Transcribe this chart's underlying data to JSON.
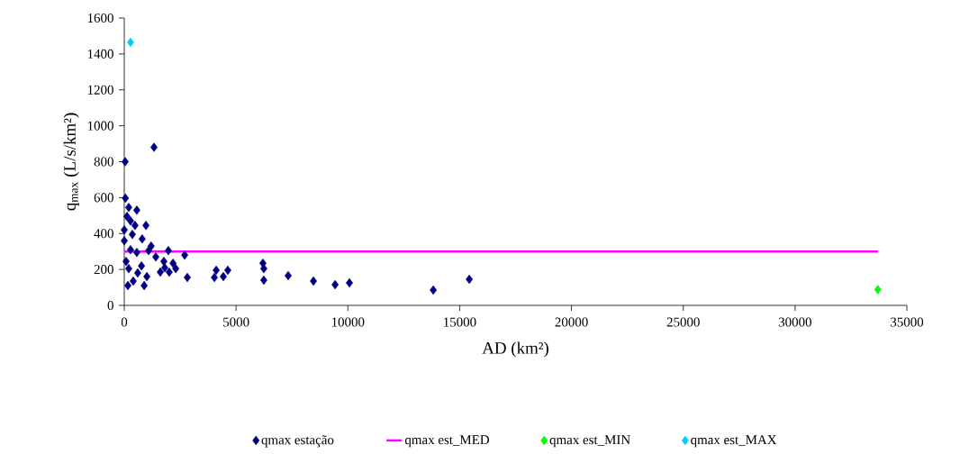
{
  "chart_data": {
    "type": "scatter",
    "xlabel": "AD (km²)",
    "ylabel": "q$_{max}$ (L/s/km²)",
    "xlim": [
      0,
      35000
    ],
    "ylim": [
      0,
      1600
    ],
    "xticks": [
      0,
      5000,
      10000,
      15000,
      20000,
      25000,
      30000,
      35000
    ],
    "yticks": [
      0,
      200,
      400,
      600,
      800,
      1000,
      1200,
      1400,
      1600
    ],
    "grid": false,
    "legend": "bottom",
    "marker": "diamond",
    "series": [
      {
        "name": "qmax estação",
        "color": "#000080",
        "x": [
          40,
          1330,
          50,
          200,
          560,
          970,
          0,
          280,
          480,
          0,
          800,
          1200,
          1090,
          280,
          1970,
          2700,
          1410,
          80,
          1770,
          2180,
          770,
          200,
          1810,
          2300,
          1610,
          2010,
          600,
          4110,
          4630,
          2820,
          4030,
          4430,
          6200,
          6240,
          6240,
          7330,
          160,
          890,
          400,
          1010,
          360,
          120,
          560,
          8460,
          9430,
          10070,
          13820,
          15430
        ],
        "values": [
          800,
          880,
          597,
          545,
          530,
          445,
          420,
          470,
          445,
          360,
          370,
          330,
          305,
          310,
          305,
          280,
          270,
          245,
          245,
          235,
          220,
          205,
          210,
          205,
          185,
          185,
          180,
          195,
          195,
          155,
          155,
          160,
          235,
          205,
          140,
          165,
          110,
          110,
          135,
          160,
          395,
          495,
          295,
          135,
          115,
          125,
          85,
          145
        ]
      },
      {
        "name": "qmax est_MED",
        "type": "line",
        "color": "#ff00ff",
        "marker": "none",
        "x": [
          0,
          33700
        ],
        "values": [
          300,
          300
        ]
      },
      {
        "name": "qmax est_MIN",
        "color": "#00ff00",
        "x": [
          33700
        ],
        "values": [
          88
        ]
      },
      {
        "name": "qmax est_MAX",
        "color": "#00ccff",
        "x": [
          280
        ],
        "values": [
          1465
        ]
      }
    ]
  }
}
